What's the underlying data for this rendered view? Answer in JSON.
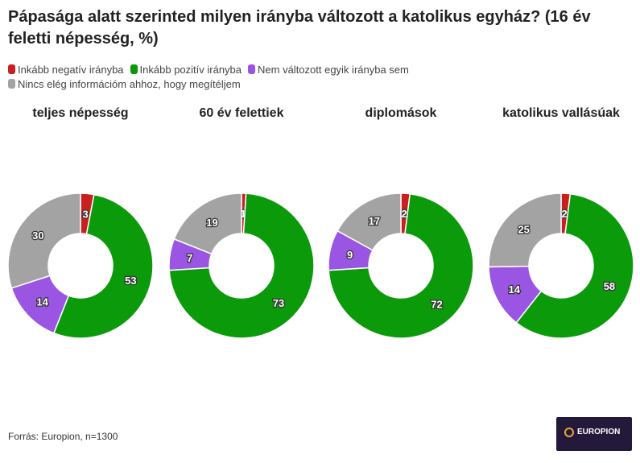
{
  "title": "Pápasága alatt szerinted milyen irányba változott a katolikus egyház? (16 év feletti népesség, %)",
  "source": "Forrás: Europion, n=1300",
  "logo_text": "EUROPION",
  "chart_data": {
    "type": "pie",
    "donut": true,
    "legend": [
      {
        "name": "Inkább negatív irányba",
        "color": "#c8201f"
      },
      {
        "name": "Inkább pozitív irányba",
        "color": "#0a9a0a"
      },
      {
        "name": "Nem változott egyik irányba sem",
        "color": "#9b55e3"
      },
      {
        "name": "Nincs elég információm ahhoz, hogy megítéljem",
        "color": "#a3a3a3"
      }
    ],
    "charts": [
      {
        "title": "teljes népesség",
        "values": [
          3,
          53,
          14,
          30
        ]
      },
      {
        "title": "60 év felettiek",
        "values": [
          1,
          73,
          7,
          19
        ]
      },
      {
        "title": "diplomások",
        "values": [
          2,
          72,
          9,
          17
        ]
      },
      {
        "title": "katolikus vallásúak",
        "values": [
          2,
          58,
          14,
          25
        ]
      }
    ]
  }
}
